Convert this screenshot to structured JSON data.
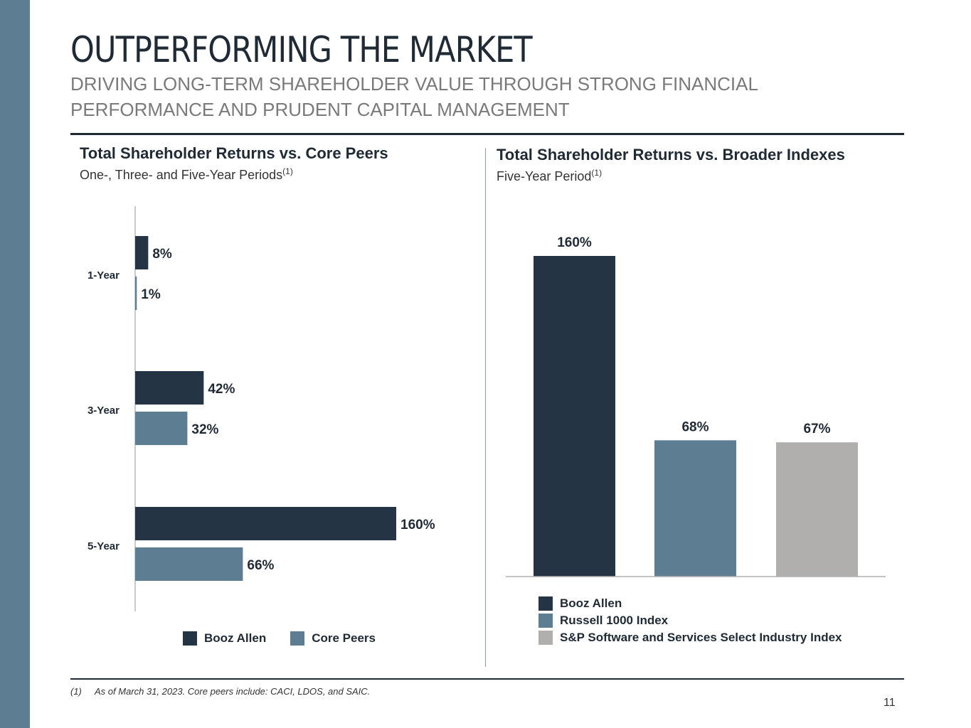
{
  "header": {
    "title": "OUTPERFORMING THE MARKET",
    "subtitle": "DRIVING LONG-TERM SHAREHOLDER VALUE THROUGH STRONG FINANCIAL PERFORMANCE AND PRUDENT CAPITAL MANAGEMENT"
  },
  "left_panel": {
    "title": "Total Shareholder Returns vs. Core Peers",
    "subtitle": "One-, Three- and Five-Year Periods",
    "footnote_ref": "(1)"
  },
  "right_panel": {
    "title": "Total Shareholder Returns vs. Broader Indexes",
    "subtitle": "Five-Year Period",
    "footnote_ref": "(1)"
  },
  "colors": {
    "booz_allen": "#243444",
    "core_peers": "#5d7d93",
    "russell": "#5d7d93",
    "sp": "#b1aeae",
    "band": "#5d7d93"
  },
  "chart_data": [
    {
      "type": "bar",
      "orientation": "horizontal",
      "title": "Total Shareholder Returns vs. Core Peers",
      "categories": [
        "1-Year",
        "3-Year",
        "5-Year"
      ],
      "series": [
        {
          "name": "Booz Allen",
          "values": [
            8,
            42,
            160
          ],
          "labels": [
            "8%",
            "42%",
            "160%"
          ]
        },
        {
          "name": "Core Peers",
          "values": [
            1,
            32,
            66
          ],
          "labels": [
            "1%",
            "32%",
            "66%"
          ]
        }
      ],
      "unit": "%",
      "xlim": [
        0,
        165
      ],
      "legend": "bottom"
    },
    {
      "type": "bar",
      "orientation": "vertical",
      "title": "Total Shareholder Returns vs. Broader Indexes",
      "categories": [
        "Booz Allen",
        "Russell 1000 Index",
        "S&P Software and Services Select Industry Index"
      ],
      "values": [
        160,
        68,
        67
      ],
      "labels": [
        "160%",
        "68%",
        "67%"
      ],
      "unit": "%",
      "ylim": [
        0,
        160
      ],
      "legend": "bottom"
    }
  ],
  "footnote": {
    "number": "(1)",
    "text": "As of March 31, 2023. Core peers include: CACI, LDOS, and SAIC."
  },
  "page_number": "11"
}
